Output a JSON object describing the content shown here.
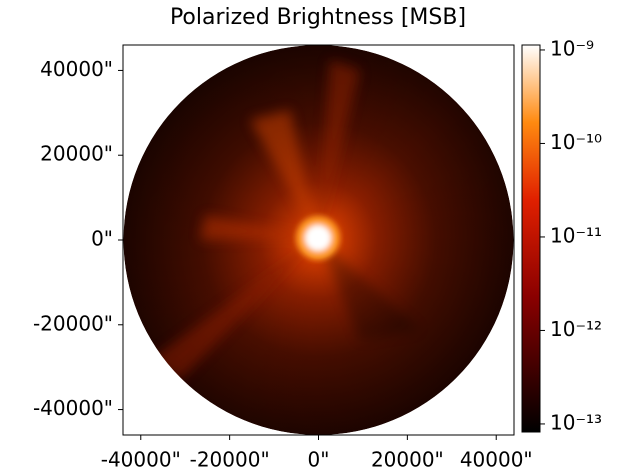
{
  "chart_data": {
    "type": "heatmap",
    "title": "Polarized Brightness [MSB]",
    "colormap": "gist_heat",
    "xlim": [
      -44000,
      44000
    ],
    "ylim": [
      -46000,
      46000
    ],
    "xticks": [
      {
        "value": -40000,
        "label": "-40000\""
      },
      {
        "value": -20000,
        "label": "-20000\""
      },
      {
        "value": 0,
        "label": "0\""
      },
      {
        "value": 20000,
        "label": "20000\""
      },
      {
        "value": 40000,
        "label": "40000\""
      }
    ],
    "yticks": [
      {
        "value": 40000,
        "label": "40000\""
      },
      {
        "value": 20000,
        "label": "20000\""
      },
      {
        "value": 0,
        "label": "0\""
      },
      {
        "value": -20000,
        "label": "-20000\""
      },
      {
        "value": -40000,
        "label": "-40000\""
      }
    ],
    "colorbar_scale": "log",
    "clim": [
      8.2e-14,
      1.13e-09
    ],
    "colorbar_ticks": [
      {
        "value": 1e-09,
        "label": "10⁻⁹"
      },
      {
        "value": 1e-10,
        "label": "10⁻¹⁰"
      },
      {
        "value": 1e-11,
        "label": "10⁻¹¹"
      },
      {
        "value": 1e-12,
        "label": "10⁻¹²"
      },
      {
        "value": 1e-13,
        "label": "10⁻¹³"
      }
    ]
  }
}
